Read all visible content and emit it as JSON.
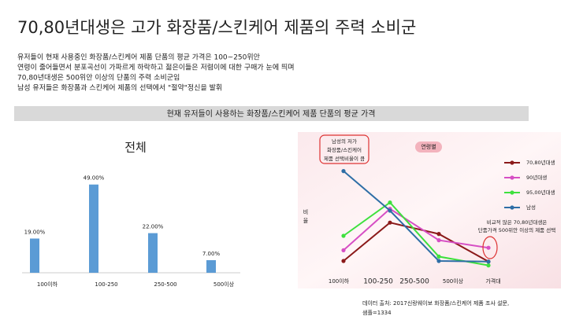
{
  "title": "70,80년대생은 고가 화장품/스킨케어 제품의 주력 소비군",
  "bullets": [
    "유저들이 현재 사용중인 화장품/스킨케어 제품 단품의 평균 가격은 100~250위안",
    "연령이 줄어들면서 분포곡선이 가파르게 하락하고 젊은이들은 저렴이에 대한 구매가 눈에 띄며",
    "70,80년대생은 500위안 이상의 단품의 주력 소비군임",
    "남성 유저들은 화장품과 스킨케어 제품의 선택에서 \"절약\"정신을 발휘"
  ],
  "banner": "현재 유저들이 사용하는 화장품/스킨케어 제품 단품의  평균 가격",
  "source": [
    "데이터 출처: 2017신랑웨이보 화장품/스킨케어 제품 조사 설문,",
    "샘플=1334"
  ],
  "chart_data": [
    {
      "type": "bar",
      "title": "전체",
      "categories": [
        "100이하",
        "100-250",
        "250-500",
        "500이상"
      ],
      "values": [
        19,
        49,
        22,
        7
      ],
      "value_labels": [
        "19.00%",
        "49.00%",
        "22.00%",
        "7.00%"
      ],
      "color": "#5b9bd5",
      "ylim": [
        0,
        55
      ]
    },
    {
      "type": "line",
      "badge": "연령별",
      "y_label": "비율",
      "x_label": "가격대",
      "categories": [
        "100이하",
        "100-250",
        "250-500",
        "500이상"
      ],
      "ylim": [
        0,
        100
      ],
      "series": [
        {
          "name": "70,80년대생",
          "color": "#8b1a1a",
          "values": [
            17.5,
            48,
            39,
            17
          ]
        },
        {
          "name": "90년대생",
          "color": "#d64fc4",
          "values": [
            26,
            59,
            34,
            28
          ]
        },
        {
          "name": "95,00년대생",
          "color": "#3ee03e",
          "values": [
            37.5,
            64,
            21,
            14
          ]
        },
        {
          "name": "남성",
          "color": "#2e6ea6",
          "values": [
            89,
            57.5,
            17.5,
            17
          ]
        }
      ],
      "annotations": [
        [
          "남성의 저가",
          "화장품/스킨케어",
          "제품 선택비율이 큼"
        ],
        [
          "비교적 많은 70,80년대생은",
          "단품가격 500위안 이상의 제품 선택"
        ]
      ]
    }
  ]
}
